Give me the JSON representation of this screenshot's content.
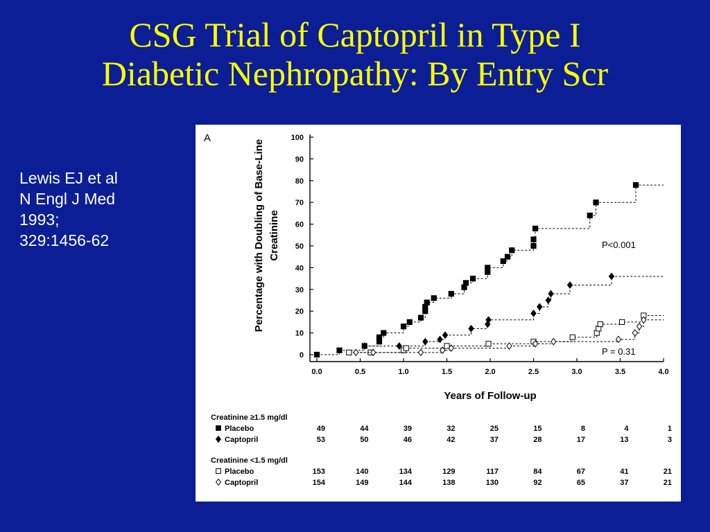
{
  "slide": {
    "title_line1": "CSG Trial of Captopril in Type I",
    "title_line2": "Diabetic Nephropathy:  By Entry Scr",
    "citation": [
      "Lewis EJ et al",
      "N Engl J Med",
      "1993;",
      "329:1456-62"
    ],
    "colors": {
      "background": "#0b1e96",
      "title": "#ffff00",
      "text": "#ffffff"
    }
  },
  "chart_data": {
    "type": "line",
    "panel_label": "A",
    "ylabel_line1": "Percentage with Doubling of Base-Line",
    "ylabel_line2": "Creatinine",
    "xlabel": "Years of Follow-up",
    "xlim": [
      0,
      4.0
    ],
    "ylim": [
      0,
      100
    ],
    "x_ticks": [
      "0.0",
      "0.5",
      "1.0",
      "1.5",
      "2.0",
      "2.5",
      "3.0",
      "3.5",
      "4.0"
    ],
    "y_ticks": [
      "0",
      "10",
      "20",
      "30",
      "40",
      "50",
      "60",
      "70",
      "80",
      "90",
      "100"
    ],
    "line_style": "dashed step",
    "annotations": [
      {
        "text": "P<0.001",
        "x": 3.35,
        "y": 50
      },
      {
        "text": "P = 0.31",
        "x": 3.35,
        "y": 0
      }
    ],
    "series": [
      {
        "name": "Placebo",
        "group": "Creatinine ≥1.5 mg/dl",
        "marker": "filled-square",
        "end_x": 4.0,
        "points": [
          [
            0,
            0
          ],
          [
            0.26,
            2
          ],
          [
            0.55,
            4
          ],
          [
            0.72,
            6
          ],
          [
            0.72,
            8
          ],
          [
            0.77,
            10
          ],
          [
            1.0,
            13
          ],
          [
            1.07,
            15
          ],
          [
            1.2,
            17
          ],
          [
            1.25,
            20
          ],
          [
            1.25,
            22
          ],
          [
            1.27,
            24
          ],
          [
            1.35,
            26
          ],
          [
            1.55,
            28
          ],
          [
            1.7,
            31
          ],
          [
            1.72,
            33
          ],
          [
            1.8,
            35
          ],
          [
            1.97,
            38
          ],
          [
            1.97,
            40
          ],
          [
            2.15,
            43
          ],
          [
            2.2,
            45
          ],
          [
            2.25,
            48
          ],
          [
            2.5,
            50
          ],
          [
            2.5,
            53
          ],
          [
            2.52,
            58
          ],
          [
            3.15,
            64
          ],
          [
            3.22,
            70
          ],
          [
            3.68,
            78
          ]
        ]
      },
      {
        "name": "Captopril",
        "group": "Creatinine ≥1.5 mg/dl",
        "marker": "filled-diamond",
        "end_x": 4.0,
        "points": [
          [
            0.55,
            4
          ],
          [
            0.95,
            4
          ],
          [
            1.25,
            6
          ],
          [
            1.42,
            7
          ],
          [
            1.48,
            9
          ],
          [
            1.78,
            12
          ],
          [
            1.97,
            14
          ],
          [
            1.98,
            16
          ],
          [
            2.5,
            19
          ],
          [
            2.57,
            22
          ],
          [
            2.67,
            25
          ],
          [
            2.7,
            28
          ],
          [
            2.92,
            32
          ],
          [
            3.4,
            36
          ]
        ]
      },
      {
        "name": "Placebo",
        "group": "Creatinine <1.5 mg/dl",
        "marker": "open-square",
        "end_x": 4.0,
        "points": [
          [
            0.37,
            1
          ],
          [
            0.62,
            1
          ],
          [
            1.0,
            2
          ],
          [
            1.03,
            3
          ],
          [
            1.5,
            4
          ],
          [
            1.98,
            5
          ],
          [
            2.5,
            6
          ],
          [
            2.95,
            8
          ],
          [
            3.23,
            10
          ],
          [
            3.25,
            12
          ],
          [
            3.27,
            14
          ],
          [
            3.52,
            15
          ],
          [
            3.77,
            18
          ]
        ]
      },
      {
        "name": "Captopril",
        "group": "Creatinine <1.5 mg/dl",
        "marker": "open-diamond",
        "end_x": 4.0,
        "points": [
          [
            0.45,
            1
          ],
          [
            0.65,
            1
          ],
          [
            1.2,
            1
          ],
          [
            1.45,
            2
          ],
          [
            1.55,
            3
          ],
          [
            2.22,
            4
          ],
          [
            2.52,
            5
          ],
          [
            2.73,
            6
          ],
          [
            3.48,
            7
          ],
          [
            3.67,
            10
          ],
          [
            3.72,
            13
          ],
          [
            3.77,
            16
          ]
        ]
      }
    ],
    "risk_table": {
      "groups": [
        {
          "header": "Creatinine ≥1.5 mg/dl",
          "rows": [
            {
              "marker": "filled-square",
              "label": "Placebo",
              "values": [
                "49",
                "44",
                "39",
                "32",
                "25",
                "15",
                "8",
                "4",
                "1"
              ]
            },
            {
              "marker": "filled-diamond",
              "label": "Captopril",
              "values": [
                "53",
                "50",
                "46",
                "42",
                "37",
                "28",
                "17",
                "13",
                "3"
              ]
            }
          ]
        },
        {
          "header": "Creatinine <1.5 mg/dl",
          "rows": [
            {
              "marker": "open-square",
              "label": "Placebo",
              "values": [
                "153",
                "140",
                "134",
                "129",
                "117",
                "84",
                "67",
                "41",
                "21"
              ]
            },
            {
              "marker": "open-diamond",
              "label": "Captopril",
              "values": [
                "154",
                "149",
                "144",
                "138",
                "130",
                "92",
                "65",
                "37",
                "21"
              ]
            }
          ]
        }
      ]
    }
  }
}
